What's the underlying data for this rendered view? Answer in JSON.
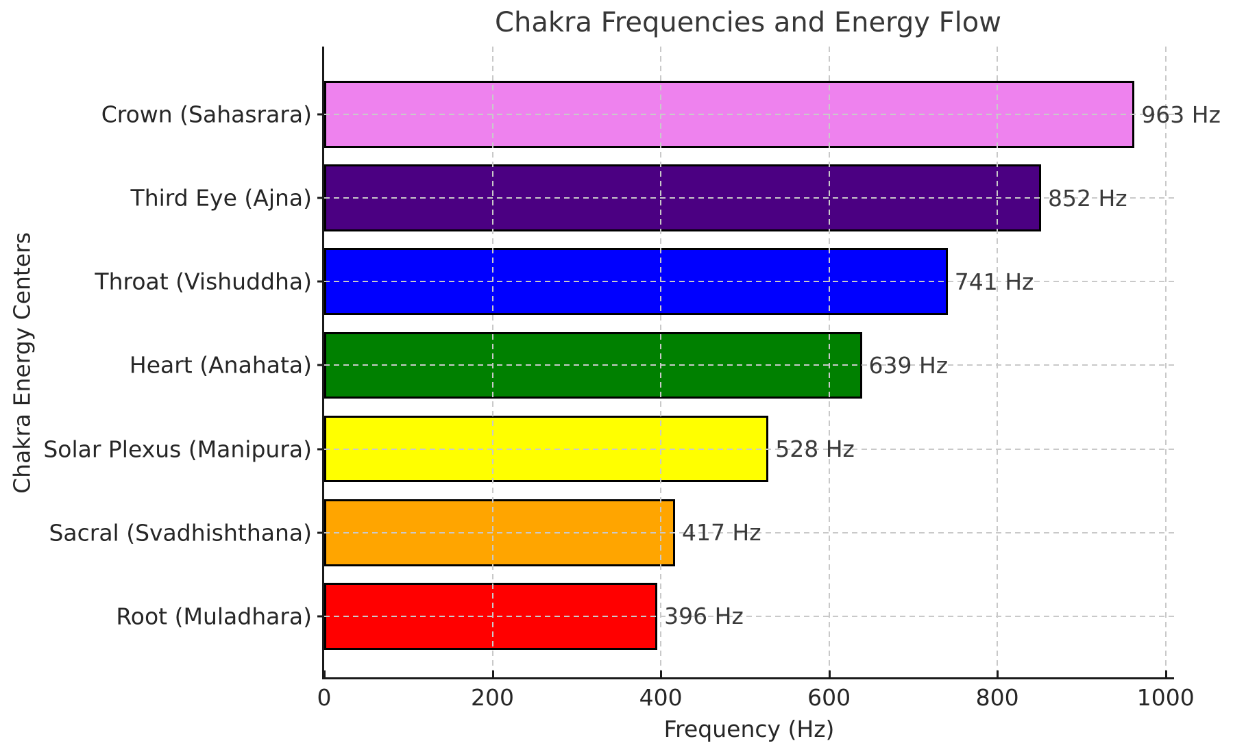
{
  "figure": {
    "title": "Chakra Frequencies and Energy Flow",
    "background": "#ffffff"
  },
  "chart_data": {
    "type": "bar",
    "orientation": "horizontal",
    "title": "Chakra Frequencies and Energy Flow",
    "xlabel": "Frequency (Hz)",
    "ylabel": "Chakra Energy Centers",
    "xlim": [
      0,
      1010
    ],
    "xticks": [
      0,
      200,
      400,
      600,
      800,
      1000
    ],
    "grid": {
      "visible": true,
      "style": "dashed",
      "color": "#c9c9c9"
    },
    "legend": "none",
    "bar_edge_color": "#000000",
    "value_suffix": " Hz",
    "categories": [
      "Crown (Sahasrara)",
      "Third Eye (Ajna)",
      "Throat (Vishuddha)",
      "Heart (Anahata)",
      "Solar Plexus (Manipura)",
      "Sacral (Svadhishthana)",
      "Root (Muladhara)"
    ],
    "values": [
      963,
      852,
      741,
      639,
      528,
      417,
      396
    ],
    "value_labels": [
      "963 Hz",
      "852 Hz",
      "741 Hz",
      "639 Hz",
      "528 Hz",
      "417 Hz",
      "396 Hz"
    ],
    "bar_colors": [
      "#EE82EE",
      "#4B0082",
      "#0000FF",
      "#008000",
      "#FFFF00",
      "#FFA500",
      "#FF0000"
    ]
  }
}
